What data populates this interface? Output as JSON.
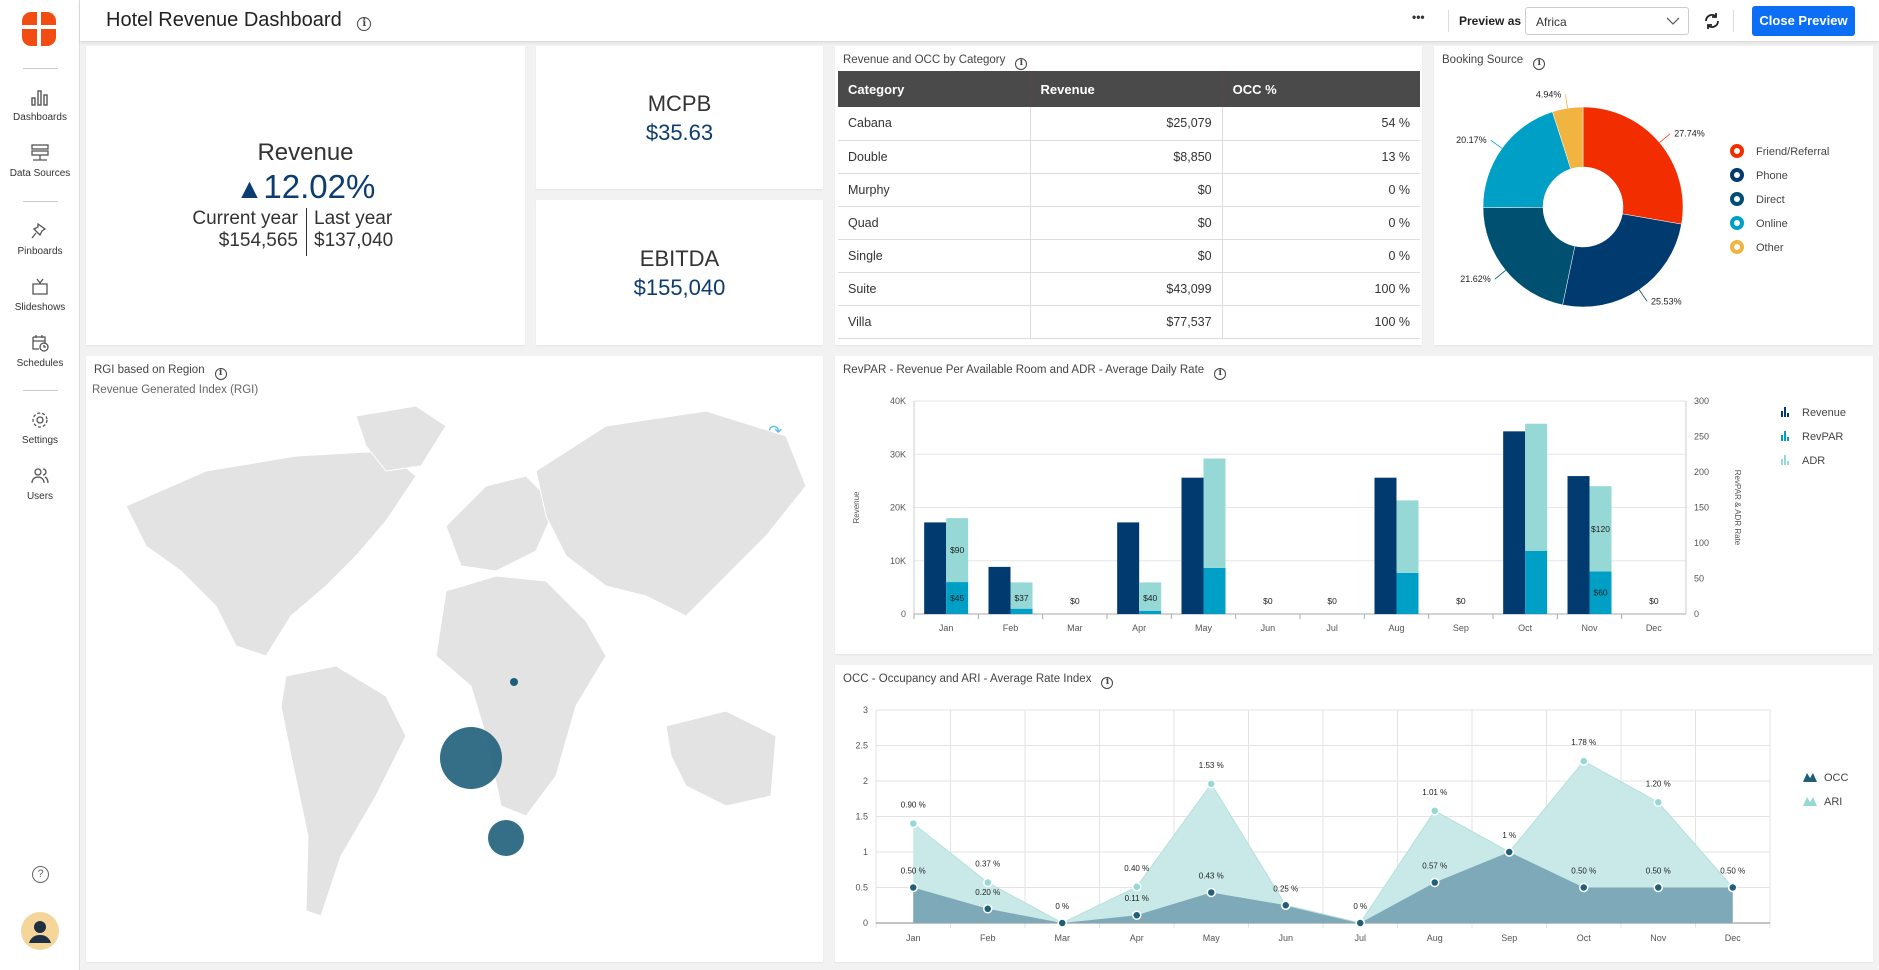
{
  "header": {
    "title": "Hotel Revenue Dashboard",
    "more_label": "•••",
    "preview_as_label": "Preview as",
    "preview_value": "Africa",
    "close_preview_label": "Close Preview"
  },
  "sidebar": {
    "items": [
      {
        "label": "Dashboards",
        "icon": "bar-chart-icon"
      },
      {
        "label": "Data Sources",
        "icon": "server-icon"
      },
      {
        "label": "Pinboards",
        "icon": "pin-icon"
      },
      {
        "label": "Slideshows",
        "icon": "tv-icon"
      },
      {
        "label": "Schedules",
        "icon": "calendar-clock-icon"
      },
      {
        "label": "Settings",
        "icon": "gear-icon"
      },
      {
        "label": "Users",
        "icon": "users-icon"
      }
    ]
  },
  "revenue_kpi": {
    "title": "Revenue",
    "change": "12.02%",
    "current_label": "Current year",
    "current_value": "$154,565",
    "last_label": "Last year",
    "last_value": "$137,040"
  },
  "mcpb": {
    "title": "MCPB",
    "value": "$35.63"
  },
  "ebitda": {
    "title": "EBITDA",
    "value": "$155,040"
  },
  "category_table": {
    "title": "Revenue and OCC by Category",
    "columns": [
      "Category",
      "Revenue",
      "OCC %"
    ],
    "rows": [
      [
        "Cabana",
        "$25,079",
        "54 %"
      ],
      [
        "Double",
        "$8,850",
        "13 %"
      ],
      [
        "Murphy",
        "$0",
        "0 %"
      ],
      [
        "Quad",
        "$0",
        "0 %"
      ],
      [
        "Single",
        "$0",
        "0 %"
      ],
      [
        "Suite",
        "$43,099",
        "100 %"
      ],
      [
        "Villa",
        "$77,537",
        "100 %"
      ]
    ]
  },
  "map": {
    "title": "RGI based on Region",
    "subtitle": "Revenue Generated Index (RGI)",
    "bubble_color": "#1f5f7a"
  },
  "chart_data": [
    {
      "type": "pie",
      "title": "Booking Source",
      "labels": [
        "Friend/Referral",
        "Phone",
        "Direct",
        "Online",
        "Other"
      ],
      "values": [
        27.74,
        25.53,
        21.62,
        20.17,
        4.94
      ],
      "value_labels": [
        "27.74%",
        "25.53%",
        "21.62%",
        "20.17%",
        "4.94%"
      ],
      "colors": [
        "#f22d00",
        "#003a6e",
        "#005072",
        "#00a0c6",
        "#f2b440"
      ],
      "legend": "right"
    },
    {
      "type": "bar",
      "title": "RevPAR - Revenue Per Available Room and ADR - Average Daily Rate",
      "categories": [
        "Jan",
        "Feb",
        "Mar",
        "Apr",
        "May",
        "Jun",
        "Jul",
        "Aug",
        "Sep",
        "Oct",
        "Nov",
        "Dec"
      ],
      "ylabel": "Revenue",
      "y2label": "RevPAR & ADR Rate",
      "ylim": [
        0,
        40000
      ],
      "y2lim": [
        0,
        300
      ],
      "yticks": [
        "0",
        "10K",
        "20K",
        "30K",
        "40K"
      ],
      "y2ticks": [
        "0",
        "50",
        "100",
        "150",
        "200",
        "250",
        "300"
      ],
      "series": [
        {
          "name": "Revenue",
          "color": "#003a6e",
          "values": [
            17200,
            8850,
            0,
            17200,
            25600,
            0,
            0,
            25600,
            0,
            34300,
            25900,
            0
          ]
        },
        {
          "name": "RevPAR",
          "color": "#00a0c6",
          "values": [
            45,
            7.5,
            0,
            4.5,
            65,
            0,
            0,
            58,
            0,
            89,
            60,
            0
          ]
        },
        {
          "name": "ADR",
          "color": "#95d8d6",
          "values": [
            90,
            37,
            0,
            40,
            154,
            0,
            0,
            102,
            0,
            179,
            120,
            0
          ]
        }
      ],
      "data_labels": [
        "$45 / $90",
        "$37",
        "$0",
        "$40",
        "",
        "$0",
        "$0",
        "",
        "$0",
        "",
        "$60 / $120",
        "$0"
      ],
      "label_items": [
        {
          "i": 0,
          "s": 1,
          "t": "$45"
        },
        {
          "i": 0,
          "s": 2,
          "t": "$90"
        },
        {
          "i": 1,
          "s": 2,
          "t": "$37"
        },
        {
          "i": 2,
          "s": -1,
          "t": "$0"
        },
        {
          "i": 3,
          "s": 2,
          "t": "$40"
        },
        {
          "i": 5,
          "s": -1,
          "t": "$0"
        },
        {
          "i": 6,
          "s": -1,
          "t": "$0"
        },
        {
          "i": 8,
          "s": -1,
          "t": "$0"
        },
        {
          "i": 10,
          "s": 1,
          "t": "$60"
        },
        {
          "i": 10,
          "s": 2,
          "t": "$120"
        },
        {
          "i": 11,
          "s": -1,
          "t": "$0"
        }
      ],
      "legend": "right"
    },
    {
      "type": "area",
      "title": "OCC - Occupancy and ARI - Average Rate Index",
      "categories": [
        "Jan",
        "Feb",
        "Mar",
        "Apr",
        "May",
        "Jun",
        "Jul",
        "Aug",
        "Sep",
        "Oct",
        "Nov",
        "Dec"
      ],
      "ylim": [
        0,
        3
      ],
      "yticks": [
        "0",
        "0.5",
        "1",
        "1.5",
        "2",
        "2.5",
        "3"
      ],
      "stacked": true,
      "series": [
        {
          "name": "OCC",
          "color": "#1f5f7a",
          "values": [
            0.5,
            0.2,
            0,
            0.11,
            0.43,
            0.25,
            0,
            0.57,
            1,
            0.5,
            0.5,
            0.5
          ],
          "labels": [
            "0.50 %",
            "0.20 %",
            "0 %",
            "0.11 %",
            "0.43 %",
            "0.25 %",
            "0 %",
            "0.57 %",
            "1 %",
            "0.50 %",
            "0.50 %",
            "0.50 %"
          ]
        },
        {
          "name": "ARI",
          "color": "#95d8d6",
          "values": [
            0.9,
            0.37,
            0,
            0.4,
            1.53,
            0,
            0,
            1.01,
            0,
            1.78,
            1.2,
            0
          ],
          "labels": [
            "0.90 %",
            "0.37 %",
            "",
            "0.40 %",
            "1.53 %",
            "",
            "",
            "1.01 %",
            "",
            "1.78 %",
            "1.20 %",
            ""
          ]
        }
      ],
      "legend": "right"
    }
  ]
}
